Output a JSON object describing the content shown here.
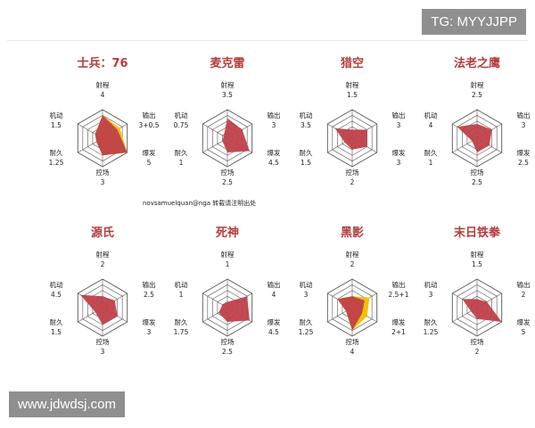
{
  "watermark_top": "TG: MYYJJPP",
  "watermark_bottom": "www.jdwdsj.com",
  "credit": "novsamuelquan@nga 转载请注明出处",
  "axes": [
    "射程",
    "输出",
    "爆发",
    "控场",
    "耐久",
    "机动"
  ],
  "colors": {
    "fill": "#c0404a",
    "overlay": "#f2c200",
    "title": "#b43a3a",
    "grid": "#555555"
  },
  "max": 5,
  "heroes": [
    {
      "name": "士兵：76",
      "values": [
        "4",
        "3+0.5",
        "5",
        "3",
        "1.25",
        "1.5"
      ],
      "num": [
        4,
        3,
        5,
        3,
        1.25,
        1.5
      ],
      "bonus": [
        4,
        3.5,
        5,
        3,
        1.25,
        1.5
      ]
    },
    {
      "name": "麦克雷",
      "values": [
        "3.5",
        "3",
        "4.5",
        "2.5",
        "1",
        "0.75"
      ],
      "num": [
        3.5,
        3,
        4.5,
        2.5,
        1,
        0.75
      ]
    },
    {
      "name": "猎空",
      "values": [
        "1.5",
        "3",
        "3",
        "2",
        "1.5",
        "3.5"
      ],
      "num": [
        1.5,
        3,
        3,
        2,
        1.5,
        3.5
      ]
    },
    {
      "name": "法老之鹰",
      "values": [
        "2.5",
        "3",
        "2.5",
        "2.5",
        "1",
        "4"
      ],
      "num": [
        2.5,
        3,
        2.5,
        2.5,
        1,
        4
      ]
    },
    {
      "name": "源氏",
      "values": [
        "2",
        "2.5",
        "3",
        "3",
        "1.5",
        "4.5"
      ],
      "num": [
        2,
        2.5,
        3,
        3,
        1.5,
        4.5
      ]
    },
    {
      "name": "死神",
      "values": [
        "1",
        "4",
        "4.5",
        "2.5",
        "1.75",
        "1"
      ],
      "num": [
        1,
        4,
        4.5,
        2.5,
        1.75,
        1
      ]
    },
    {
      "name": "黑影",
      "values": [
        "2",
        "2.5+1",
        "2+1",
        "4",
        "1.25",
        "3"
      ],
      "num": [
        2,
        2.5,
        2,
        4,
        1.25,
        3
      ],
      "bonus": [
        2,
        3.5,
        3,
        4,
        1.25,
        3
      ]
    },
    {
      "name": "末日铁拳",
      "values": [
        "1.5",
        "2",
        "5",
        "2",
        "1.25",
        "3"
      ],
      "num": [
        1.5,
        2,
        5,
        2,
        1.25,
        3
      ]
    }
  ]
}
